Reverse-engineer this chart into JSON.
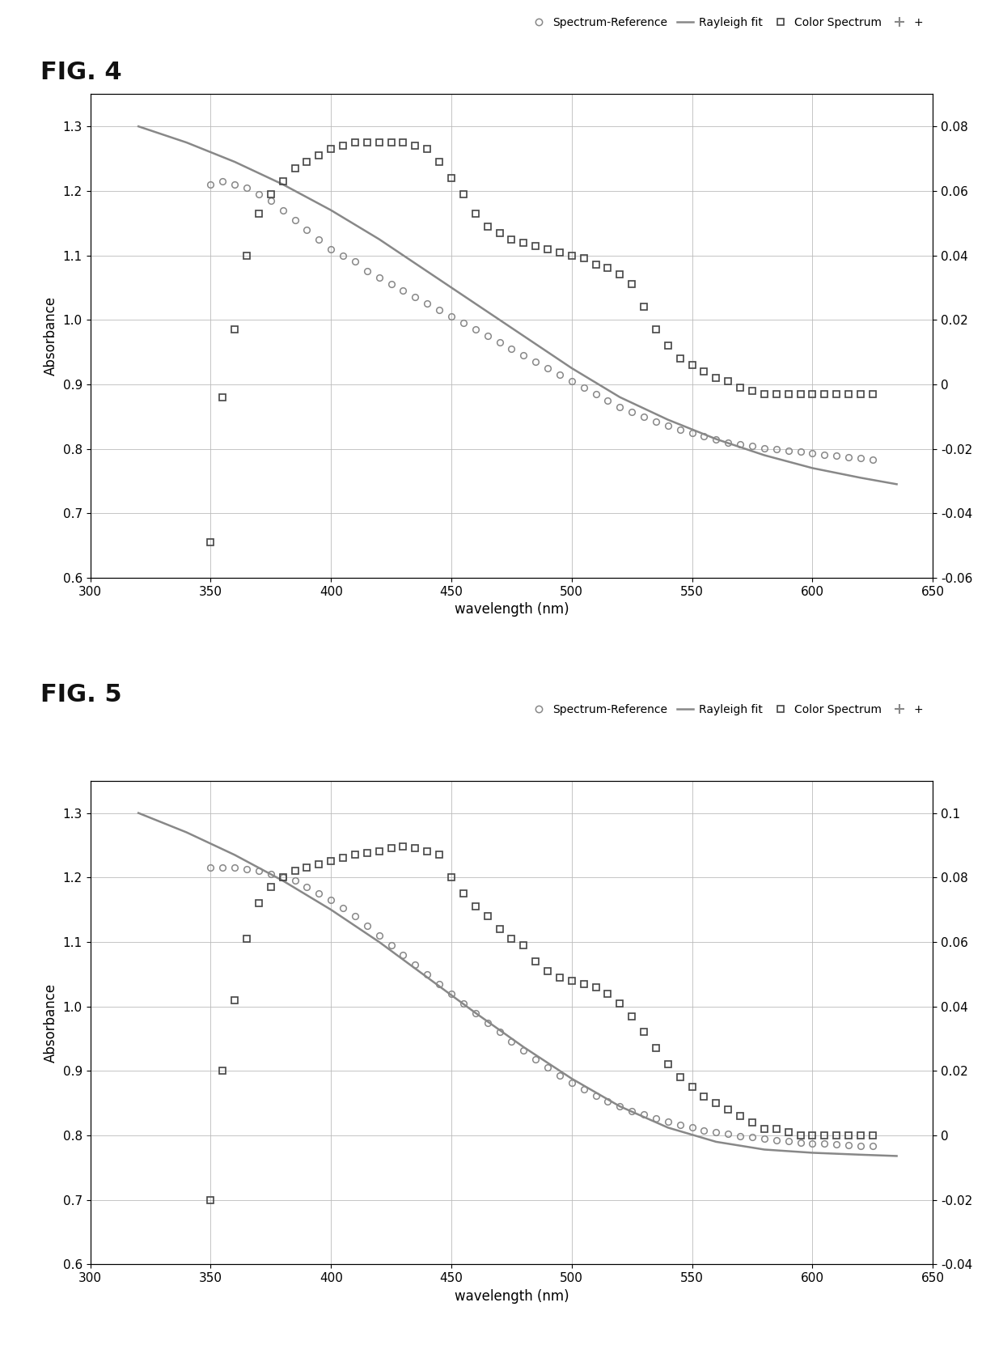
{
  "fig4": {
    "spectrum_ref_x": [
      350,
      355,
      360,
      365,
      370,
      375,
      380,
      385,
      390,
      395,
      400,
      405,
      410,
      415,
      420,
      425,
      430,
      435,
      440,
      445,
      450,
      455,
      460,
      465,
      470,
      475,
      480,
      485,
      490,
      495,
      500,
      505,
      510,
      515,
      520,
      525,
      530,
      535,
      540,
      545,
      550,
      555,
      560,
      565,
      570,
      575,
      580,
      585,
      590,
      595,
      600,
      605,
      610,
      615,
      620,
      625
    ],
    "spectrum_ref_y": [
      1.21,
      1.215,
      1.21,
      1.205,
      1.195,
      1.185,
      1.17,
      1.155,
      1.14,
      1.125,
      1.11,
      1.1,
      1.09,
      1.075,
      1.065,
      1.055,
      1.045,
      1.035,
      1.025,
      1.015,
      1.005,
      0.995,
      0.985,
      0.975,
      0.965,
      0.955,
      0.945,
      0.935,
      0.925,
      0.915,
      0.905,
      0.895,
      0.885,
      0.875,
      0.865,
      0.857,
      0.849,
      0.842,
      0.836,
      0.83,
      0.824,
      0.819,
      0.814,
      0.81,
      0.807,
      0.804,
      0.801,
      0.799,
      0.797,
      0.795,
      0.793,
      0.791,
      0.789,
      0.787,
      0.785,
      0.783
    ],
    "rayleigh_x": [
      320,
      340,
      360,
      380,
      400,
      420,
      440,
      460,
      480,
      500,
      520,
      540,
      560,
      580,
      600,
      620,
      635
    ],
    "rayleigh_y": [
      1.3,
      1.275,
      1.245,
      1.21,
      1.17,
      1.125,
      1.075,
      1.025,
      0.975,
      0.925,
      0.88,
      0.845,
      0.815,
      0.79,
      0.77,
      0.755,
      0.745
    ],
    "color_x": [
      350,
      355,
      360,
      365,
      370,
      375,
      380,
      385,
      390,
      395,
      400,
      405,
      410,
      415,
      420,
      425,
      430,
      435,
      440,
      445,
      450,
      455,
      460,
      465,
      470,
      475,
      480,
      485,
      490,
      495,
      500,
      505,
      510,
      515,
      520,
      525,
      530,
      535,
      540,
      545,
      550,
      555,
      560,
      565,
      570,
      575,
      580,
      585,
      590,
      595,
      600,
      605,
      610,
      615,
      620,
      625
    ],
    "color_y": [
      0.655,
      0.88,
      0.985,
      1.1,
      1.165,
      1.195,
      1.215,
      1.235,
      1.245,
      1.255,
      1.265,
      1.27,
      1.275,
      1.275,
      1.275,
      1.275,
      1.275,
      1.27,
      1.265,
      1.245,
      1.22,
      1.195,
      1.165,
      1.145,
      1.135,
      1.125,
      1.12,
      1.115,
      1.11,
      1.105,
      1.1,
      1.095,
      1.085,
      1.08,
      1.07,
      1.055,
      1.02,
      0.985,
      0.96,
      0.94,
      0.93,
      0.92,
      0.91,
      0.905,
      0.895,
      0.89,
      0.885,
      0.885,
      0.885,
      0.885,
      0.885,
      0.885,
      0.885,
      0.885,
      0.885,
      0.885
    ],
    "ylim": [
      0.6,
      1.35
    ],
    "xlim": [
      300,
      650
    ],
    "yticks_left": [
      0.6,
      0.7,
      0.8,
      0.9,
      1.0,
      1.1,
      1.2,
      1.3
    ],
    "yticks_right_vals": [
      0.6,
      0.7,
      0.8,
      0.9,
      1.0,
      1.1,
      1.2,
      1.3
    ],
    "yticks_right_labels": [
      "-0.06",
      "-0.04",
      "-0.02",
      "0",
      "0.02",
      "0.04",
      "0.06",
      "0.08"
    ],
    "xticks": [
      300,
      350,
      400,
      450,
      500,
      550,
      600,
      650
    ],
    "xlabel": "wavelength (nm)",
    "ylabel": "Absorbance",
    "fig_label": "FIG. 4"
  },
  "fig5": {
    "spectrum_ref_x": [
      350,
      355,
      360,
      365,
      370,
      375,
      380,
      385,
      390,
      395,
      400,
      405,
      410,
      415,
      420,
      425,
      430,
      435,
      440,
      445,
      450,
      455,
      460,
      465,
      470,
      475,
      480,
      485,
      490,
      495,
      500,
      505,
      510,
      515,
      520,
      525,
      530,
      535,
      540,
      545,
      550,
      555,
      560,
      565,
      570,
      575,
      580,
      585,
      590,
      595,
      600,
      605,
      610,
      615,
      620,
      625
    ],
    "spectrum_ref_y": [
      1.215,
      1.215,
      1.215,
      1.213,
      1.21,
      1.205,
      1.2,
      1.195,
      1.185,
      1.175,
      1.165,
      1.153,
      1.14,
      1.125,
      1.11,
      1.095,
      1.08,
      1.065,
      1.05,
      1.035,
      1.02,
      1.005,
      0.99,
      0.975,
      0.96,
      0.945,
      0.932,
      0.918,
      0.905,
      0.893,
      0.882,
      0.872,
      0.862,
      0.853,
      0.845,
      0.838,
      0.832,
      0.826,
      0.821,
      0.816,
      0.812,
      0.808,
      0.805,
      0.802,
      0.799,
      0.797,
      0.795,
      0.793,
      0.791,
      0.789,
      0.788,
      0.787,
      0.786,
      0.785,
      0.784,
      0.783
    ],
    "rayleigh_x": [
      320,
      340,
      360,
      380,
      400,
      420,
      440,
      460,
      480,
      500,
      520,
      540,
      560,
      580,
      600,
      620,
      635
    ],
    "rayleigh_y": [
      1.3,
      1.27,
      1.235,
      1.195,
      1.15,
      1.1,
      1.045,
      0.99,
      0.937,
      0.888,
      0.845,
      0.812,
      0.79,
      0.778,
      0.773,
      0.77,
      0.768
    ],
    "color_x": [
      350,
      355,
      360,
      365,
      370,
      375,
      380,
      385,
      390,
      395,
      400,
      405,
      410,
      415,
      420,
      425,
      430,
      435,
      440,
      445,
      450,
      455,
      460,
      465,
      470,
      475,
      480,
      485,
      490,
      495,
      500,
      505,
      510,
      515,
      520,
      525,
      530,
      535,
      540,
      545,
      550,
      555,
      560,
      565,
      570,
      575,
      580,
      585,
      590,
      595,
      600,
      605,
      610,
      615,
      620,
      625
    ],
    "color_y": [
      0.7,
      0.9,
      1.01,
      1.105,
      1.16,
      1.185,
      1.2,
      1.21,
      1.215,
      1.22,
      1.225,
      1.23,
      1.235,
      1.238,
      1.24,
      1.245,
      1.248,
      1.245,
      1.24,
      1.235,
      1.2,
      1.175,
      1.155,
      1.14,
      1.12,
      1.105,
      1.095,
      1.07,
      1.055,
      1.045,
      1.04,
      1.035,
      1.03,
      1.02,
      1.005,
      0.985,
      0.96,
      0.935,
      0.91,
      0.89,
      0.875,
      0.86,
      0.85,
      0.84,
      0.83,
      0.82,
      0.81,
      0.81,
      0.805,
      0.8,
      0.8,
      0.8,
      0.8,
      0.8,
      0.8,
      0.8
    ],
    "ylim": [
      0.6,
      1.35
    ],
    "xlim": [
      300,
      650
    ],
    "yticks_left": [
      0.6,
      0.7,
      0.8,
      0.9,
      1.0,
      1.1,
      1.2,
      1.3
    ],
    "yticks_right_vals": [
      0.6,
      0.7,
      0.8,
      0.9,
      1.0,
      1.1,
      1.2,
      1.3
    ],
    "yticks_right_labels": [
      "-0.04",
      "-0.02",
      "0",
      "0.02",
      "0.04",
      "0.06",
      "0.08",
      "0.1"
    ],
    "xticks": [
      300,
      350,
      400,
      450,
      500,
      550,
      600,
      650
    ],
    "xlabel": "wavelength (nm)",
    "ylabel": "Absorbance",
    "fig_label": "FIG. 5"
  },
  "line_color": "#888888",
  "marker_color": "#888888",
  "square_color": "#444444",
  "bg_color": "#ffffff",
  "grid_color": "#bbbbbb"
}
